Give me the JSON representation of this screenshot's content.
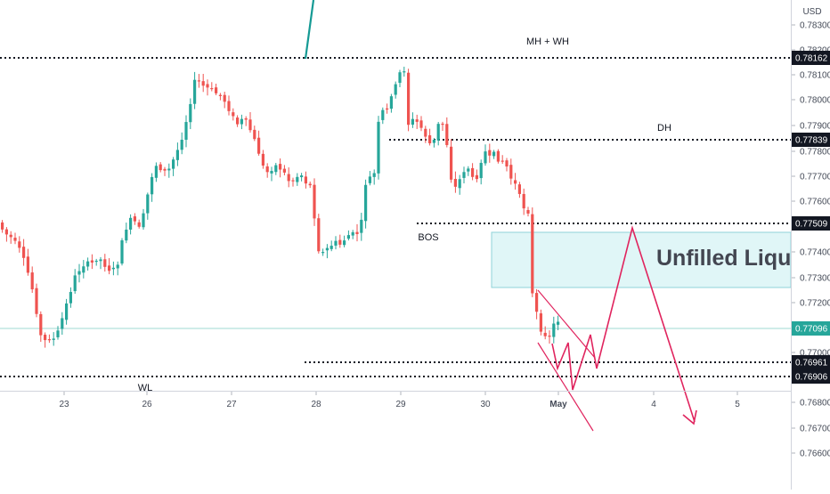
{
  "chart_data": {
    "type": "candlestick",
    "currency_label": "USD",
    "price_range": [
      0.7655,
      0.7837
    ],
    "y_ticks": [
      "0.78300",
      "0.78200",
      "0.78100",
      "0.78000",
      "0.77900",
      "0.77800",
      "0.77700",
      "0.77600",
      "0.77400",
      "0.77300",
      "0.77200",
      "0.77000",
      "0.76800",
      "0.76700",
      "0.76600"
    ],
    "x_labels": [
      "23",
      "26",
      "27",
      "28",
      "29",
      "30",
      "May",
      "4",
      "5"
    ],
    "price_tags": [
      {
        "value": 0.78162,
        "label": "0.78162",
        "style": "level"
      },
      {
        "value": 0.77839,
        "label": "0.77839",
        "style": "level"
      },
      {
        "value": 0.77509,
        "label": "0.77509",
        "style": "level"
      },
      {
        "value": 0.77096,
        "label": "0.77096",
        "style": "last"
      },
      {
        "value": 0.76961,
        "label": "0.76961",
        "style": "level"
      },
      {
        "value": 0.76906,
        "label": "0.76906",
        "style": "level"
      }
    ],
    "annotations": [
      {
        "id": "mh-wh",
        "text": "MH + WH"
      },
      {
        "id": "dh",
        "text": "DH"
      },
      {
        "id": "bos",
        "text": "BOS"
      },
      {
        "id": "wl",
        "text": "WL"
      }
    ],
    "zone": {
      "label": "Unfilled Liquidity",
      "from": 0.7727,
      "to": 0.7748
    },
    "colors": {
      "up": "#26a69a",
      "down": "#ef5350",
      "projection": "#e0245e",
      "zone_fill": "#e0f6f7",
      "zone_border": "#8fd3d8",
      "last_price": "#26a69a",
      "level_tag": "#131722"
    },
    "trend_line": true
  }
}
